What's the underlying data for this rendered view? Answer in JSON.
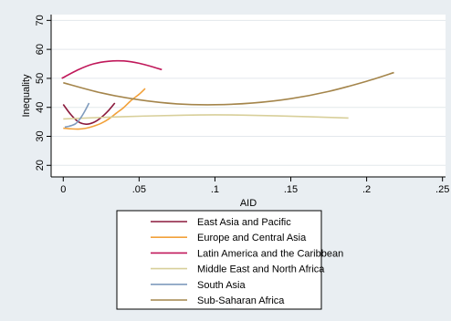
{
  "chart_data": {
    "type": "line",
    "xlabel": "AID",
    "ylabel": "Inequality",
    "xlim": [
      -0.008,
      0.252
    ],
    "ylim": [
      16,
      72
    ],
    "xticks": [
      0,
      0.05,
      0.1,
      0.15,
      0.2,
      0.25
    ],
    "xtick_labels": [
      "0",
      ".05",
      ".1",
      ".15",
      ".2",
      ".25"
    ],
    "yticks": [
      20,
      30,
      40,
      50,
      60,
      70
    ],
    "ytick_labels": [
      "20",
      "30",
      "40",
      "50",
      "60",
      "70"
    ],
    "grid": "horizontal",
    "legend_position": "bottom",
    "background_color": "#e9eef2",
    "plot_background": "#ffffff",
    "series": [
      {
        "name": "East Asia and Pacific",
        "color": "#8b1a3c",
        "x": [
          0.0,
          0.005,
          0.01,
          0.015,
          0.02,
          0.025,
          0.03,
          0.034
        ],
        "y": [
          41,
          37.5,
          35,
          34.2,
          34.8,
          36.5,
          39,
          41.5
        ]
      },
      {
        "name": "Europe and Central Asia",
        "color": "#f2a13a",
        "x": [
          0.0,
          0.005,
          0.01,
          0.015,
          0.02,
          0.025,
          0.03,
          0.035,
          0.04,
          0.045,
          0.05,
          0.054
        ],
        "y": [
          32.8,
          32.6,
          32.5,
          32.8,
          33.5,
          34.5,
          36,
          38,
          40,
          42.5,
          44.5,
          46.5
        ]
      },
      {
        "name": "Latin America and the Caribbean",
        "color": "#c0185a",
        "x": [
          -0.001,
          0.01,
          0.02,
          0.03,
          0.04,
          0.05,
          0.06,
          0.065
        ],
        "y": [
          50,
          53,
          55,
          55.9,
          56,
          55.2,
          53.8,
          53
        ]
      },
      {
        "name": "Middle East and North Africa",
        "color": "#d8cf9a",
        "x": [
          0.0,
          0.04,
          0.08,
          0.1,
          0.12,
          0.16,
          0.188
        ],
        "y": [
          36,
          36.8,
          37.3,
          37.4,
          37.3,
          36.8,
          36.3
        ]
      },
      {
        "name": "South Asia",
        "color": "#7f9bbd",
        "x": [
          0.001,
          0.004,
          0.008,
          0.011,
          0.014,
          0.017
        ],
        "y": [
          33.2,
          33.5,
          34.3,
          36,
          38.5,
          41.5
        ]
      },
      {
        "name": "Sub-Saharan Africa",
        "color": "#a4854b",
        "x": [
          0.0,
          0.025,
          0.05,
          0.075,
          0.1,
          0.125,
          0.15,
          0.175,
          0.2,
          0.218
        ],
        "y": [
          48.5,
          45,
          42.6,
          41.2,
          40.9,
          41.5,
          43,
          45.5,
          49,
          52
        ]
      }
    ]
  }
}
